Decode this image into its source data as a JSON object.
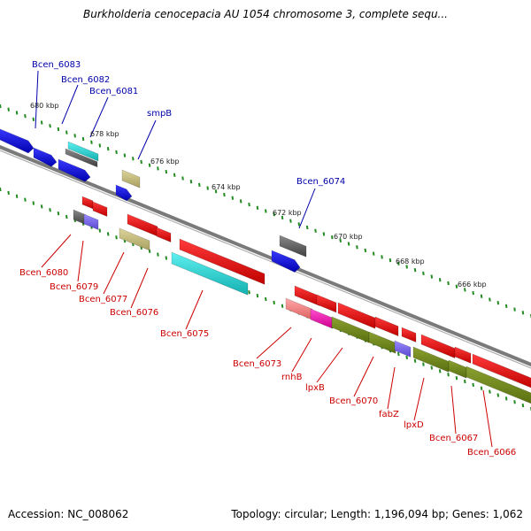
{
  "title": "Burkholderia cenocepacia AU 1054 chromosome 3, complete sequ...",
  "footer": {
    "accession": "Accession: NC_008062",
    "topology": "Topology: circular; Length: 1,196,094 bp; Genes: 1,062"
  },
  "colors": {
    "forward_label": "#0000aa",
    "reverse_label": "#cc0000",
    "backbone": "#808080",
    "ticks": "#228b22"
  },
  "scale_ticks": [
    "680 kbp",
    "678 kbp",
    "676 kbp",
    "674 kbp",
    "672 kbp",
    "670 kbp",
    "668 kbp",
    "666 kbp"
  ],
  "genes_forward": [
    {
      "name": "Bcen_6083",
      "color": "blue"
    },
    {
      "name": "Bcen_6082",
      "color": "cyan/grey"
    },
    {
      "name": "Bcen_6081",
      "color": "blue"
    },
    {
      "name": "smpB",
      "color": "khaki"
    },
    {
      "name": "Bcen_6074",
      "color": "grey/blue"
    }
  ],
  "genes_reverse": [
    {
      "name": "Bcen_6080"
    },
    {
      "name": "Bcen_6079"
    },
    {
      "name": "Bcen_6077"
    },
    {
      "name": "Bcen_6076"
    },
    {
      "name": "Bcen_6075"
    },
    {
      "name": "Bcen_6073"
    },
    {
      "name": "rnhB"
    },
    {
      "name": "lpxB"
    },
    {
      "name": "Bcen_6070"
    },
    {
      "name": "fabZ"
    },
    {
      "name": "lpxD"
    },
    {
      "name": "Bcen_6067"
    },
    {
      "name": "Bcen_6066"
    }
  ]
}
